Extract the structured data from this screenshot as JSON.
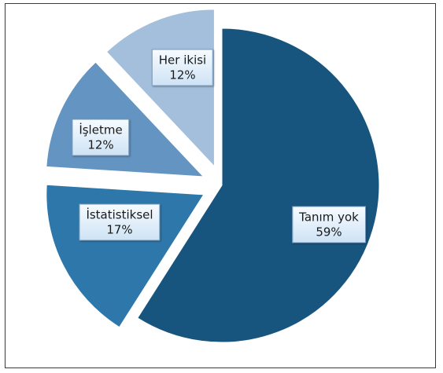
{
  "chart_data": {
    "type": "pie",
    "title": "",
    "legend": "none",
    "slices": [
      {
        "label": "Tanım yok",
        "value": 59,
        "display": "59%",
        "color": "#17557f",
        "exploded": false
      },
      {
        "label": "İstatistiksel",
        "value": 17,
        "display": "17%",
        "color": "#2e77aa",
        "exploded": true
      },
      {
        "label": "İşletme",
        "value": 12,
        "display": "12%",
        "color": "#6495c2",
        "exploded": true
      },
      {
        "label": "Her ikisi",
        "value": 12,
        "display": "12%",
        "color": "#a3bfdb",
        "exploded": true
      }
    ]
  }
}
